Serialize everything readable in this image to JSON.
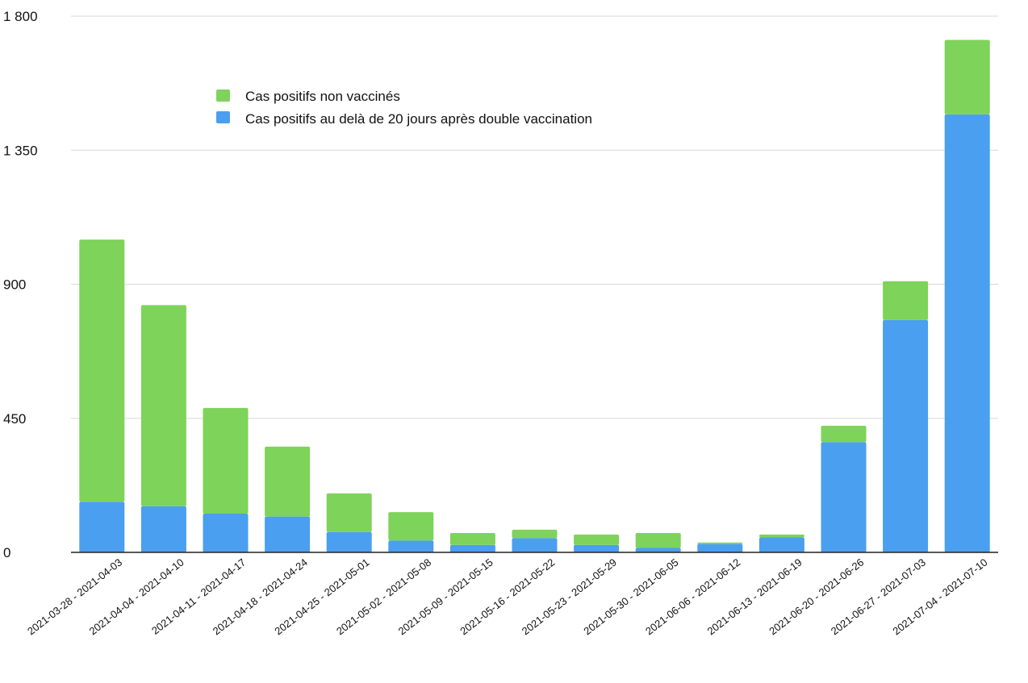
{
  "chart_data": {
    "type": "bar",
    "stacked": true,
    "categories": [
      "2021-03-28 - 2021-04-03",
      "2021-04-04 - 2021-04-10",
      "2021-04-11 - 2021-04-17",
      "2021-04-18 - 2021-04-24",
      "2021-04-25 - 2021-05-01",
      "2021-05-02 - 2021-05-08",
      "2021-05-09 - 2021-05-15",
      "2021-05-16 - 2021-05-22",
      "2021-05-23 - 2021-05-29",
      "2021-05-30 - 2021-06-05",
      "2021-06-06 - 2021-06-12",
      "2021-06-13 - 2021-06-19",
      "2021-06-20 - 2021-06-26",
      "2021-06-27 - 2021-07-03",
      "2021-07-04 - 2021-07-10"
    ],
    "series": [
      {
        "name": "Cas positifs au delà de 20 jours après double vaccination",
        "color": "#4a9ff0",
        "values": [
          170,
          155,
          130,
          120,
          68,
          40,
          25,
          48,
          25,
          15,
          28,
          50,
          370,
          780,
          1470
        ]
      },
      {
        "name": "Cas positifs non vaccinés",
        "color": "#7ed35a",
        "values": [
          880,
          675,
          355,
          235,
          130,
          95,
          40,
          28,
          35,
          50,
          5,
          10,
          55,
          130,
          250
        ]
      }
    ],
    "legend_order": [
      1,
      0
    ],
    "yticks": [
      0,
      450,
      900,
      1350,
      1800
    ],
    "ytick_labels": [
      "0",
      "450",
      "900",
      "1 350",
      "1 800"
    ],
    "ylim": [
      0,
      1800
    ],
    "grid": true,
    "legend_position": "top-left"
  }
}
